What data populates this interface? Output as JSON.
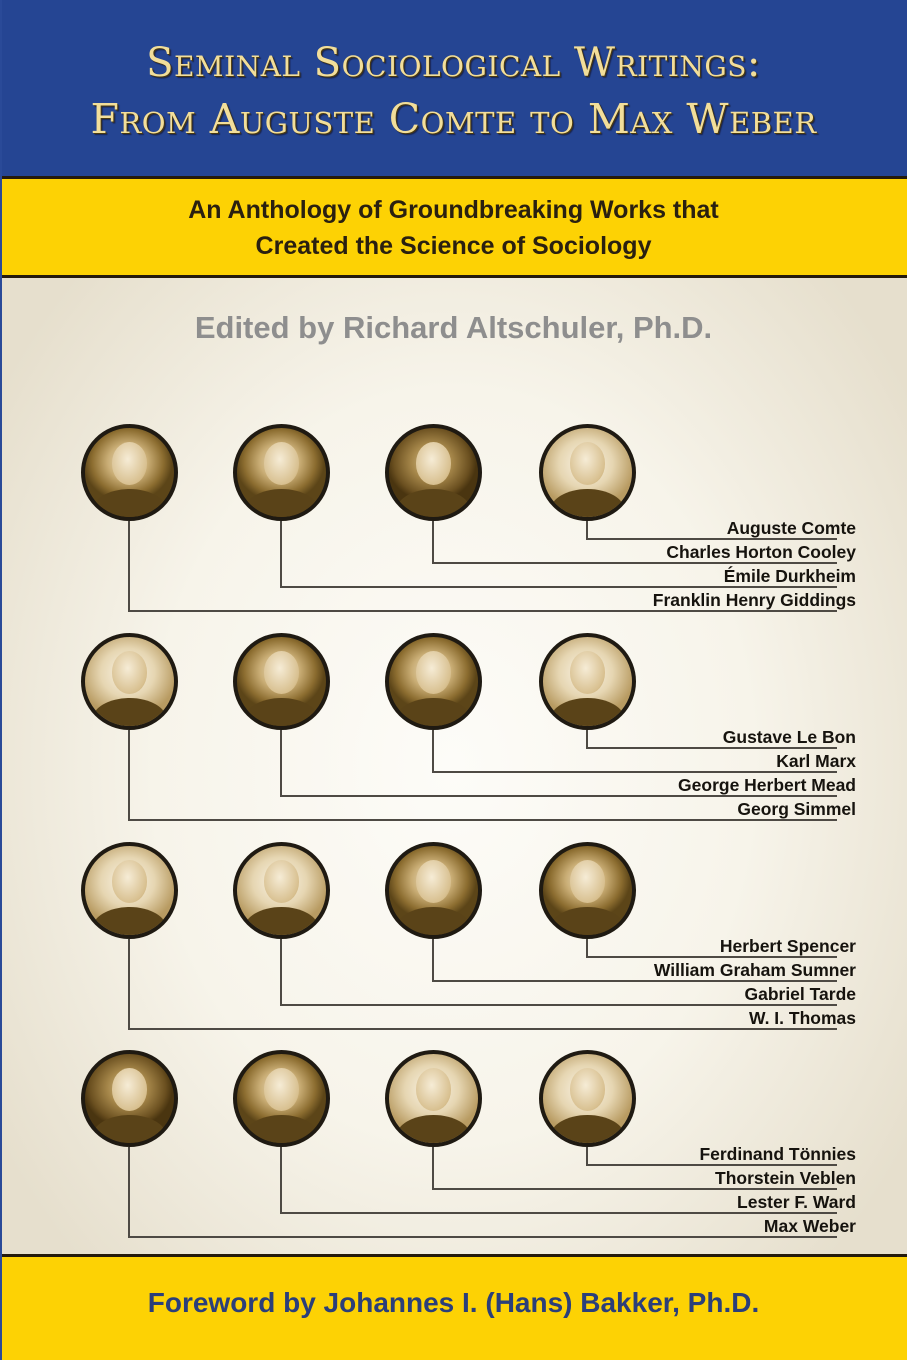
{
  "cover": {
    "title_line_1": "Seminal  Sociological Writings:",
    "title_line_2": "From Auguste Comte to Max  Weber",
    "subtitle_line_1": "An Anthology of  Groundbreaking Works that",
    "subtitle_line_2": "Created the Science of  Sociology",
    "editor": "Edited by Richard Altschuler, Ph.D.",
    "foreword": "Foreword by Johannes I. (Hans) Bakker, Ph.D.",
    "colors": {
      "title_band": "#254593",
      "title_text": "#f2de9a",
      "yellow_band": "#fdd204",
      "rule": "#241a0c",
      "editor_text": "#8e8e8e",
      "foreword_text": "#2b3f7a",
      "name_text": "#16130e",
      "portrait_border": "#1f1a12"
    }
  },
  "groups": [
    {
      "names": [
        "Auguste Comte",
        "Charles Horton Cooley",
        "Émile Durkheim",
        "Franklin Henry Giddings"
      ],
      "portraits": [
        "portrait-giddings",
        "portrait-durkheim",
        "portrait-cooley",
        "portrait-comte"
      ]
    },
    {
      "names": [
        "Gustave Le Bon",
        "Karl Marx",
        "George Herbert Mead",
        "Georg Simmel"
      ],
      "portraits": [
        "portrait-simmel",
        "portrait-mead",
        "portrait-marx",
        "portrait-le-bon"
      ]
    },
    {
      "names": [
        "Herbert Spencer",
        "William Graham Sumner",
        "Gabriel Tarde",
        "W. I. Thomas"
      ],
      "portraits": [
        "portrait-thomas",
        "portrait-tarde",
        "portrait-sumner",
        "portrait-spencer"
      ]
    },
    {
      "names": [
        "Ferdinand Tönnies",
        "Thorstein Veblen",
        "Lester F. Ward",
        "Max Weber"
      ],
      "portraits": [
        "portrait-weber",
        "portrait-ward",
        "portrait-veblen",
        "portrait-tonnies"
      ]
    }
  ]
}
